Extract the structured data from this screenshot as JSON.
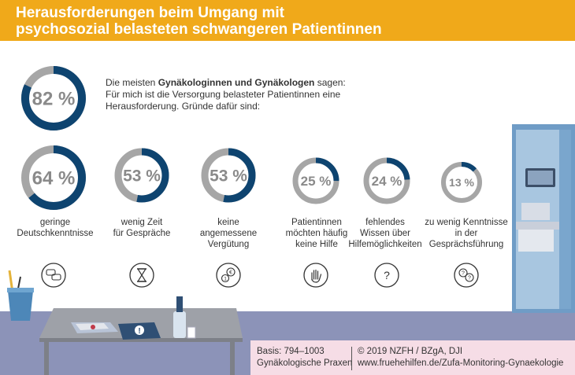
{
  "header": {
    "line1": "Herausforderungen beim Umgang mit",
    "line2": "psychosozial belasteten schwangeren Patientinnen"
  },
  "intro": {
    "part1": "Die meisten ",
    "bold": "Gynäkologinnen und Gynäkologen",
    "part2": " sagen:",
    "line2": "Für mich ist die Versorgung belasteter Patientinnen eine",
    "line3": "Herausforderung. Gründe dafür sind:"
  },
  "colors": {
    "header": "#f0a91a",
    "donut_fill": "#0e4470",
    "donut_track": "#a6a6a6",
    "wall": "#8c93b8",
    "footer_box": "#f6dde6"
  },
  "chart_data": {
    "type": "donut",
    "title": "Herausforderungen beim Umgang mit psychosozial belasteten schwangeren Patientinnen",
    "main": {
      "value": 82,
      "label": "82 %"
    },
    "reasons": [
      {
        "value": 64,
        "label": "64 %",
        "caption": [
          "geringe",
          "Deutschkenntnisse"
        ],
        "icon": "speech-bubbles-icon"
      },
      {
        "value": 53,
        "label": "53 %",
        "caption": [
          "wenig Zeit",
          "für Gespräche"
        ],
        "icon": "hourglass-icon"
      },
      {
        "value": 53,
        "label": "53 %",
        "caption": [
          "keine",
          "angemessene",
          "Vergütung"
        ],
        "icon": "coins-icon"
      },
      {
        "value": 25,
        "label": "25 %",
        "caption": [
          "Patientinnen",
          "möchten häufig",
          "keine Hilfe"
        ],
        "icon": "stop-hand-icon"
      },
      {
        "value": 24,
        "label": "24 %",
        "caption": [
          "fehlendes",
          "Wissen über",
          "Hilfemöglichkeiten"
        ],
        "icon": "question-icon"
      },
      {
        "value": 13,
        "label": "13 %",
        "caption": [
          "zu wenig Kenntnisse",
          "in der",
          "Gesprächsführung"
        ],
        "icon": "question-bubbles-icon"
      }
    ]
  },
  "footer": {
    "basis": "Basis: 794–1003",
    "basis2": "Gynäkologische Praxen",
    "copyright": "© 2019 NZFH / BZgA, DJI",
    "url": "www.fruehehilfen.de/Zufa-Monitoring-Gynaekologie"
  }
}
